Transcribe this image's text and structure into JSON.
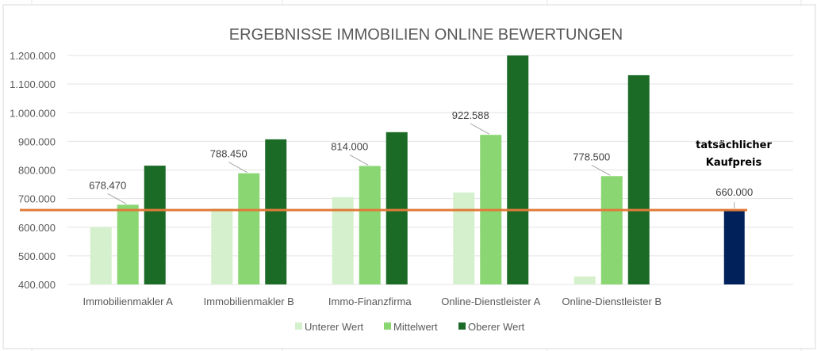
{
  "chart_data": {
    "type": "bar",
    "title": "ERGEBNISSE IMMOBILIEN ONLINE BEWERTUNGEN",
    "xlabel": "",
    "ylabel": "",
    "ylim": [
      400000,
      1200000
    ],
    "yticks": [
      "400.000",
      "500.000",
      "600.000",
      "700.000",
      "800.000",
      "900.000",
      "1.000.000",
      "1.100.000",
      "1.200.000"
    ],
    "ytick_values": [
      400000,
      500000,
      600000,
      700000,
      800000,
      900000,
      1000000,
      1100000,
      1200000
    ],
    "grid": true,
    "legend_position": "bottom",
    "categories": [
      "Immobilienmakler A",
      "Immobilienmakler B",
      "Immo-Finanzfirma",
      "Online-Dienstleister A",
      "Online-Dienstleister B",
      ""
    ],
    "series": [
      {
        "name": "Unterer Wert",
        "color": "#d5f0cc",
        "values": [
          600000,
          665000,
          705000,
          721000,
          428000,
          null
        ]
      },
      {
        "name": "Mittelwert",
        "color": "#8ad672",
        "values": [
          678470,
          788450,
          814000,
          922588,
          778500,
          null
        ],
        "data_labels": [
          "678.470",
          "788.450",
          "814.000",
          "922.588",
          "778.500",
          null
        ]
      },
      {
        "name": "Oberer Wert",
        "color": "#1b6b27",
        "values": [
          815000,
          907000,
          932000,
          1200000,
          1131000,
          null
        ]
      }
    ],
    "purchase_price": {
      "value": 660000,
      "label": "660.000",
      "color": "#00215a",
      "annotation_line1": "tatsächlicher",
      "annotation_line2": "Kaufpreis"
    },
    "reference_line": {
      "value": 660000,
      "color": "#e07b39"
    }
  }
}
